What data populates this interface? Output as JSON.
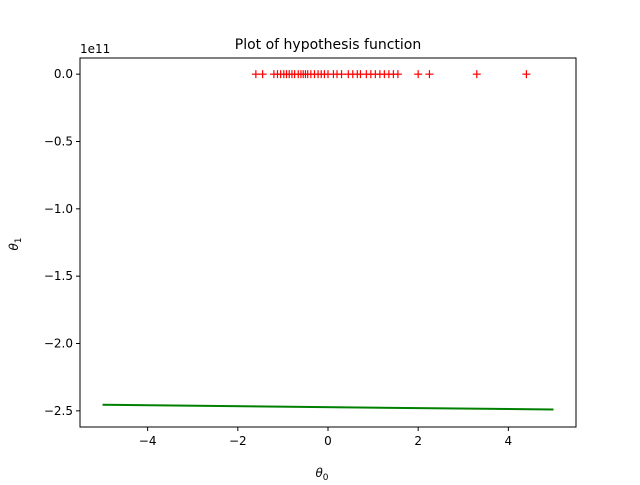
{
  "chart_data": {
    "type": "scatter",
    "title": "Plot of hypothesis function",
    "xlabel": "θ",
    "xlabel_sub": "0",
    "ylabel": "θ",
    "ylabel_sub": "1",
    "y_offset_label": "1e11",
    "xlim": [
      -5.5,
      5.5
    ],
    "ylim": [
      -2.62,
      0.12
    ],
    "y_scale_factor": 100000000000,
    "xticks": [
      -4,
      -2,
      0,
      2,
      4
    ],
    "xtick_labels": [
      "−4",
      "−2",
      "0",
      "2",
      "4"
    ],
    "yticks": [
      0.0,
      -0.5,
      -1.0,
      -1.5,
      -2.0,
      -2.5
    ],
    "ytick_labels": [
      "0.0",
      "−0.5",
      "−1.0",
      "−1.5",
      "−2.0",
      "−2.5"
    ],
    "grid": false,
    "series": [
      {
        "kind": "points",
        "marker": "+",
        "color": "#ff0000",
        "x": [
          -1.6,
          -1.45,
          -1.2,
          -1.12,
          -1.05,
          -0.98,
          -0.92,
          -0.86,
          -0.8,
          -0.74,
          -0.66,
          -0.6,
          -0.55,
          -0.5,
          -0.45,
          -0.38,
          -0.3,
          -0.22,
          -0.15,
          -0.08,
          0.0,
          0.12,
          0.2,
          0.3,
          0.45,
          0.55,
          0.65,
          0.72,
          0.85,
          0.95,
          1.05,
          1.15,
          1.25,
          1.35,
          1.45,
          1.55,
          2.0,
          2.25,
          3.3,
          4.4
        ],
        "y": [
          0,
          0,
          0,
          0,
          0,
          0,
          0,
          0,
          0,
          0,
          0,
          0,
          0,
          0,
          0,
          0,
          0,
          0,
          0,
          0,
          0,
          0,
          0,
          0,
          0,
          0,
          0,
          0,
          0,
          0,
          0,
          0,
          0,
          0,
          0,
          0,
          0,
          0,
          0,
          0
        ]
      },
      {
        "kind": "line",
        "color": "#008000",
        "x": [
          -5,
          5
        ],
        "y": [
          -2.455,
          -2.49
        ]
      }
    ]
  }
}
